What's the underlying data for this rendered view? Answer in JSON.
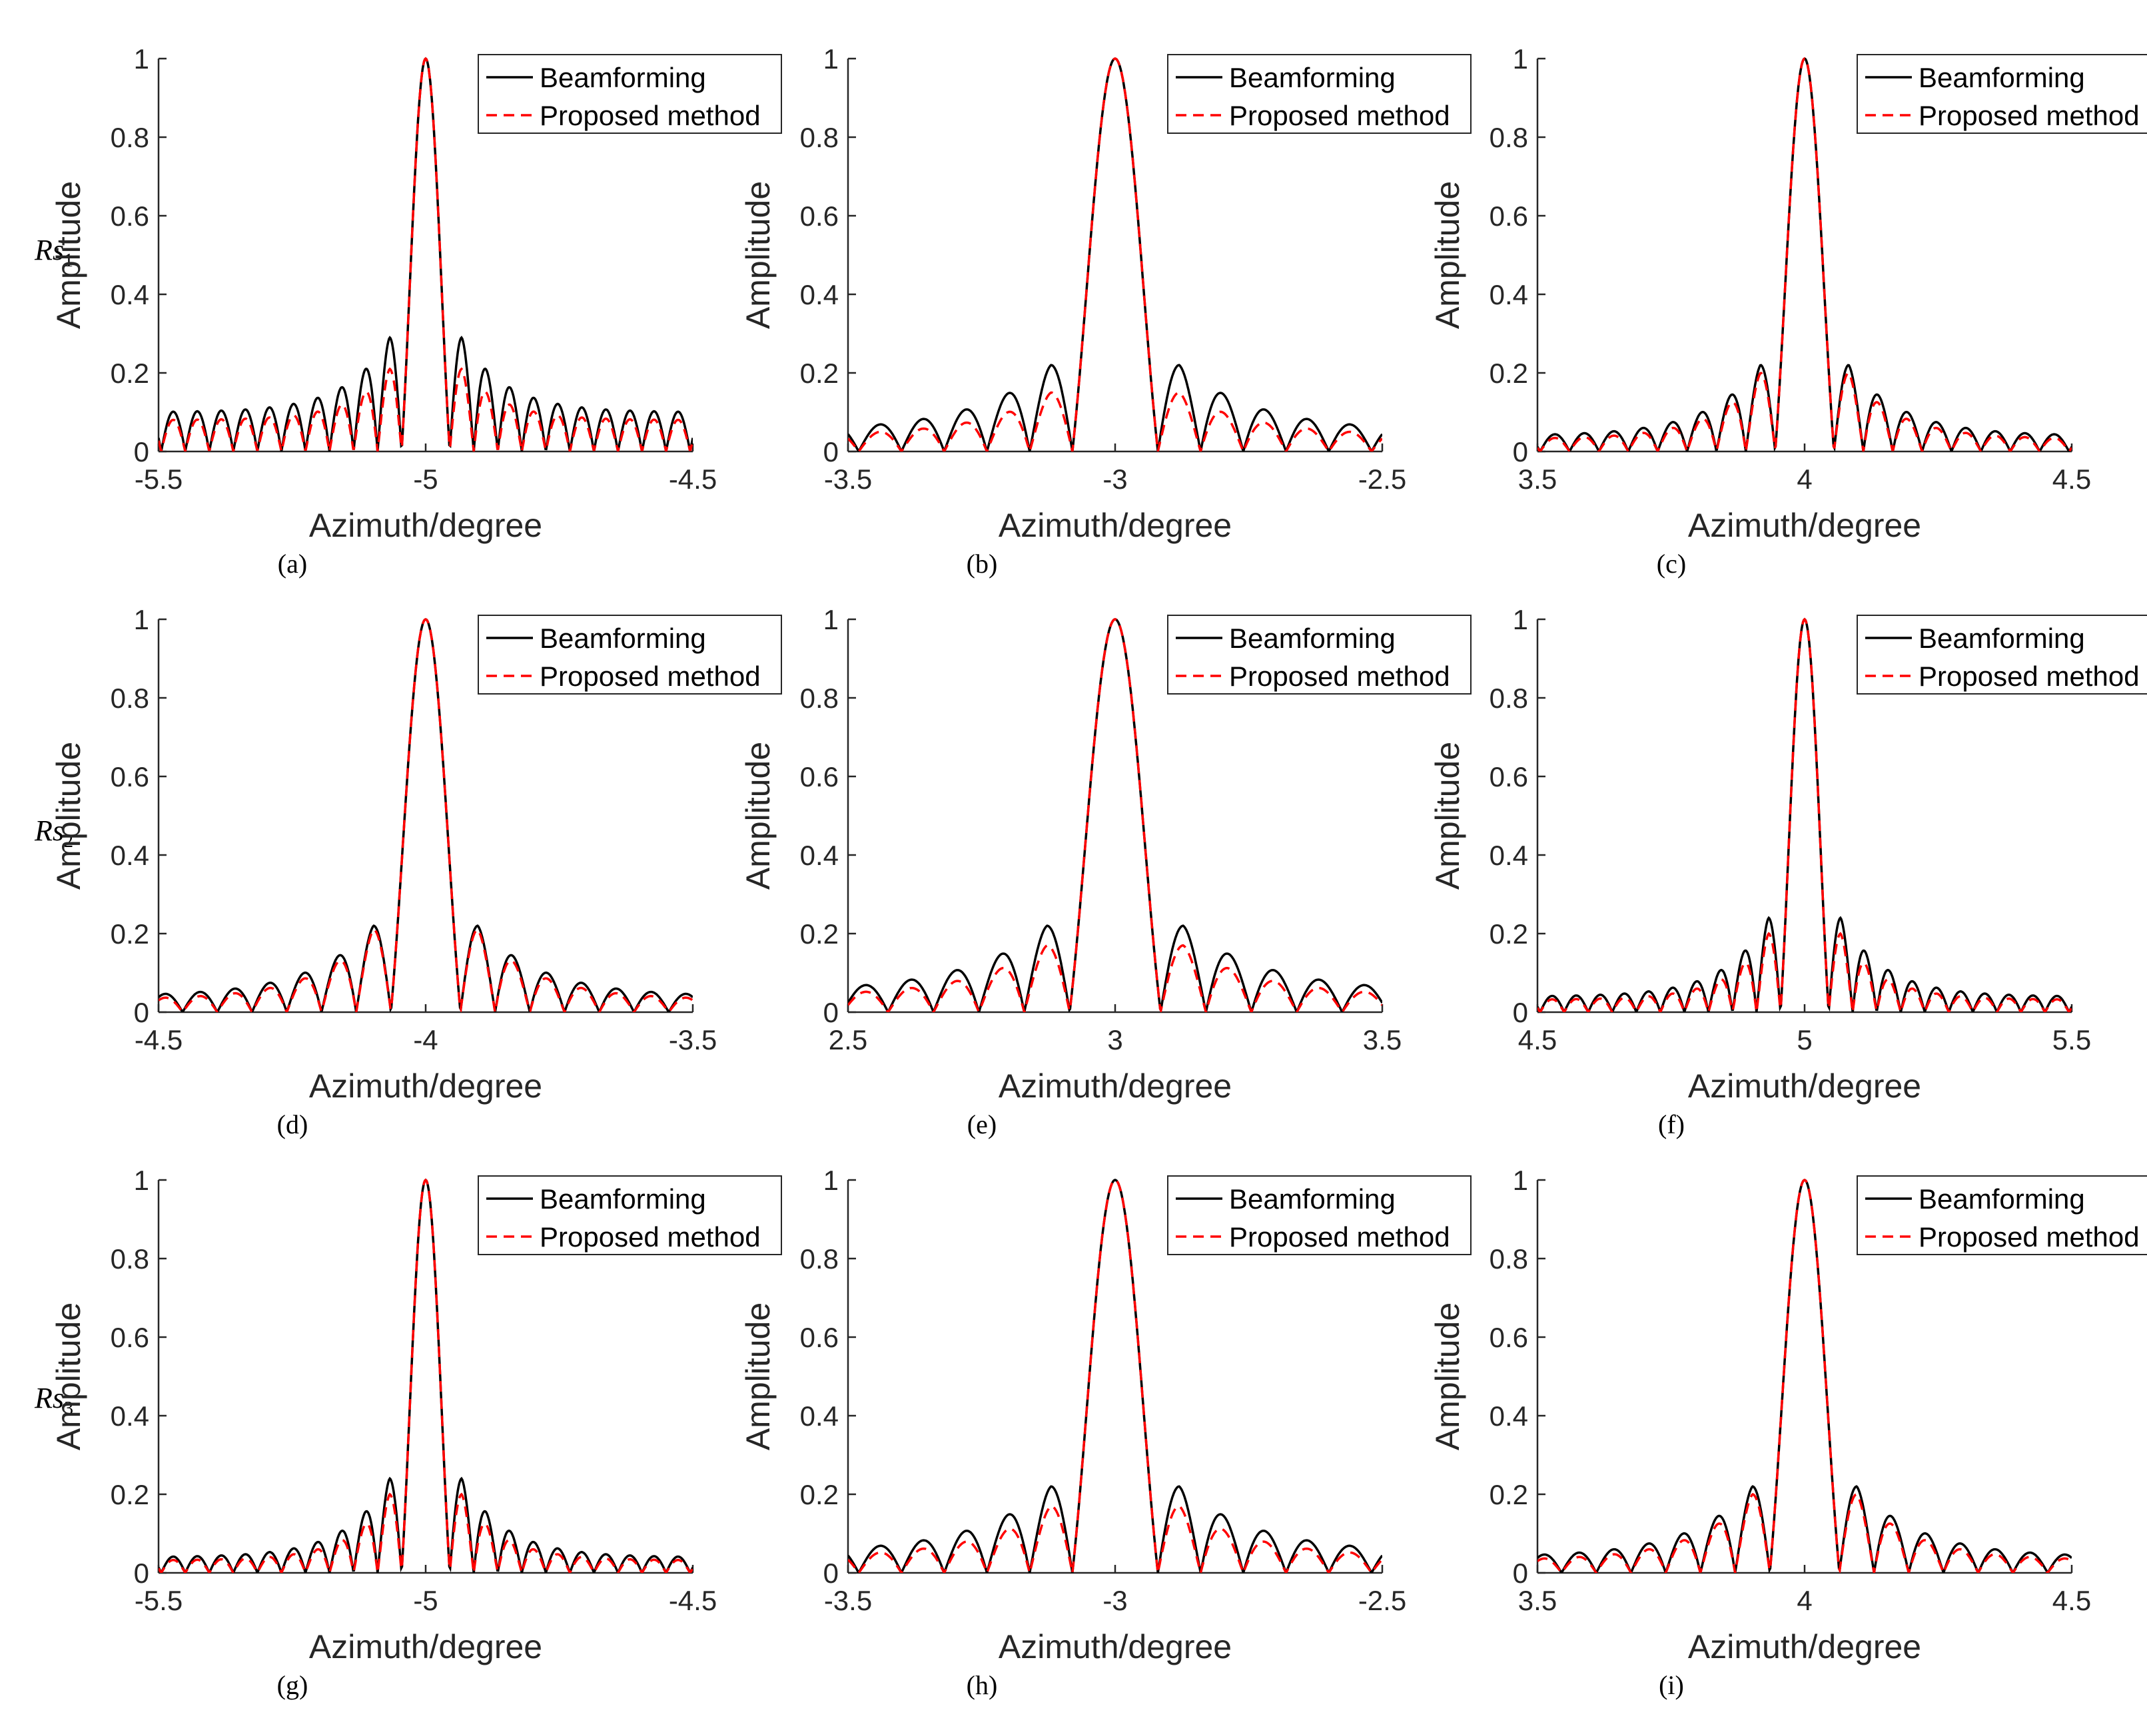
{
  "figure": {
    "row_labels": [
      {
        "base": "Rs",
        "sub": "1"
      },
      {
        "base": "Rs",
        "sub": "2"
      },
      {
        "base": "Rs",
        "sub": "3"
      }
    ]
  },
  "chart_data": [
    {
      "type": "line",
      "caption": "(a)",
      "xlabel": "Azimuth/degree",
      "ylabel": "Amplitude",
      "xlim": [
        -5.5,
        -4.5
      ],
      "ylim": [
        0,
        1
      ],
      "xticks": [
        "-5.5",
        "-5",
        "-4.5"
      ],
      "yticks": [
        "0",
        "0.2",
        "0.4",
        "0.6",
        "0.8",
        "1"
      ],
      "center": -5.0,
      "mainlobe_halfwidth": 0.045,
      "first_sidelobe": 0.29,
      "sidelobe_floor": 0.1,
      "proposed_peak": 0.21,
      "legend_position": "top-right",
      "series": [
        {
          "name": "Beamforming",
          "color": "#000000",
          "style": "solid"
        },
        {
          "name": "Proposed method",
          "color": "#ff0000",
          "style": "dashed"
        }
      ]
    },
    {
      "type": "line",
      "caption": "(b)",
      "xlabel": "Azimuth/degree",
      "ylabel": "Amplitude",
      "xlim": [
        -3.5,
        -2.5
      ],
      "ylim": [
        0,
        1
      ],
      "xticks": [
        "-3.5",
        "-3",
        "-2.5"
      ],
      "yticks": [
        "0",
        "0.2",
        "0.4",
        "0.6",
        "0.8",
        "1"
      ],
      "center": -3.0,
      "mainlobe_halfwidth": 0.08,
      "first_sidelobe": 0.22,
      "sidelobe_floor": 0.05,
      "proposed_peak": 0.15,
      "legend_position": "top-right",
      "series": [
        {
          "name": "Beamforming",
          "color": "#000000",
          "style": "solid"
        },
        {
          "name": "Proposed method",
          "color": "#ff0000",
          "style": "dashed"
        }
      ]
    },
    {
      "type": "line",
      "caption": "(c)",
      "xlabel": "Azimuth/degree",
      "ylabel": "Amplitude",
      "xlim": [
        3.5,
        4.5
      ],
      "ylim": [
        0,
        1
      ],
      "xticks": [
        "3.5",
        "4",
        "4.5"
      ],
      "yticks": [
        "0",
        "0.2",
        "0.4",
        "0.6",
        "0.8",
        "1"
      ],
      "center": 4.0,
      "mainlobe_halfwidth": 0.055,
      "first_sidelobe": 0.22,
      "sidelobe_floor": 0.04,
      "proposed_peak": 0.2,
      "legend_position": "top-right",
      "series": [
        {
          "name": "Beamforming",
          "color": "#000000",
          "style": "solid"
        },
        {
          "name": "Proposed method",
          "color": "#ff0000",
          "style": "dashed"
        }
      ]
    },
    {
      "type": "line",
      "caption": "(d)",
      "xlabel": "Azimuth/degree",
      "ylabel": "Amplitude",
      "xlim": [
        -4.5,
        -3.5
      ],
      "ylim": [
        0,
        1
      ],
      "xticks": [
        "-4.5",
        "-4",
        "-3.5"
      ],
      "yticks": [
        "0",
        "0.2",
        "0.4",
        "0.6",
        "0.8",
        "1"
      ],
      "center": -4.0,
      "mainlobe_halfwidth": 0.065,
      "first_sidelobe": 0.22,
      "sidelobe_floor": 0.04,
      "proposed_peak": 0.21,
      "legend_position": "top-right",
      "series": [
        {
          "name": "Beamforming",
          "color": "#000000",
          "style": "solid"
        },
        {
          "name": "Proposed method",
          "color": "#ff0000",
          "style": "dashed"
        }
      ]
    },
    {
      "type": "line",
      "caption": "(e)",
      "xlabel": "Azimuth/degree",
      "ylabel": "Amplitude",
      "xlim": [
        2.5,
        3.5
      ],
      "ylim": [
        0,
        1
      ],
      "xticks": [
        "2.5",
        "3",
        "3.5"
      ],
      "yticks": [
        "0",
        "0.2",
        "0.4",
        "0.6",
        "0.8",
        "1"
      ],
      "center": 3.0,
      "mainlobe_halfwidth": 0.085,
      "first_sidelobe": 0.22,
      "sidelobe_floor": 0.05,
      "proposed_peak": 0.17,
      "legend_position": "top-right",
      "series": [
        {
          "name": "Beamforming",
          "color": "#000000",
          "style": "solid"
        },
        {
          "name": "Proposed method",
          "color": "#ff0000",
          "style": "dashed"
        }
      ]
    },
    {
      "type": "line",
      "caption": "(f)",
      "xlabel": "Azimuth/degree",
      "ylabel": "Amplitude",
      "xlim": [
        4.5,
        5.5
      ],
      "ylim": [
        0,
        1
      ],
      "xticks": [
        "4.5",
        "5",
        "5.5"
      ],
      "yticks": [
        "0",
        "0.2",
        "0.4",
        "0.6",
        "0.8",
        "1"
      ],
      "center": 5.0,
      "mainlobe_halfwidth": 0.045,
      "first_sidelobe": 0.24,
      "sidelobe_floor": 0.04,
      "proposed_peak": 0.2,
      "legend_position": "top-right",
      "series": [
        {
          "name": "Beamforming",
          "color": "#000000",
          "style": "solid"
        },
        {
          "name": "Proposed method",
          "color": "#ff0000",
          "style": "dashed"
        }
      ]
    },
    {
      "type": "line",
      "caption": "(g)",
      "xlabel": "Azimuth/degree",
      "ylabel": "Amplitude",
      "xlim": [
        -5.5,
        -4.5
      ],
      "ylim": [
        0,
        1
      ],
      "xticks": [
        "-5.5",
        "-5",
        "-4.5"
      ],
      "yticks": [
        "0",
        "0.2",
        "0.4",
        "0.6",
        "0.8",
        "1"
      ],
      "center": -5.0,
      "mainlobe_halfwidth": 0.045,
      "first_sidelobe": 0.24,
      "sidelobe_floor": 0.04,
      "proposed_peak": 0.2,
      "legend_position": "top-right",
      "series": [
        {
          "name": "Beamforming",
          "color": "#000000",
          "style": "solid"
        },
        {
          "name": "Proposed method",
          "color": "#ff0000",
          "style": "dashed"
        }
      ]
    },
    {
      "type": "line",
      "caption": "(h)",
      "xlabel": "Azimuth/degree",
      "ylabel": "Amplitude",
      "xlim": [
        -3.5,
        -2.5
      ],
      "ylim": [
        0,
        1
      ],
      "xticks": [
        "-3.5",
        "-3",
        "-2.5"
      ],
      "yticks": [
        "0",
        "0.2",
        "0.4",
        "0.6",
        "0.8",
        "1"
      ],
      "center": -3.0,
      "mainlobe_halfwidth": 0.08,
      "first_sidelobe": 0.22,
      "sidelobe_floor": 0.05,
      "proposed_peak": 0.17,
      "legend_position": "top-right",
      "series": [
        {
          "name": "Beamforming",
          "color": "#000000",
          "style": "solid"
        },
        {
          "name": "Proposed method",
          "color": "#ff0000",
          "style": "dashed"
        }
      ]
    },
    {
      "type": "line",
      "caption": "(i)",
      "xlabel": "Azimuth/degree",
      "ylabel": "Amplitude",
      "xlim": [
        3.5,
        4.5
      ],
      "ylim": [
        0,
        1
      ],
      "xticks": [
        "3.5",
        "4",
        "4.5"
      ],
      "yticks": [
        "0",
        "0.2",
        "0.4",
        "0.6",
        "0.8",
        "1"
      ],
      "center": 4.0,
      "mainlobe_halfwidth": 0.065,
      "first_sidelobe": 0.22,
      "sidelobe_floor": 0.04,
      "proposed_peak": 0.2,
      "legend_position": "top-right",
      "series": [
        {
          "name": "Beamforming",
          "color": "#000000",
          "style": "solid"
        },
        {
          "name": "Proposed method",
          "color": "#ff0000",
          "style": "dashed"
        }
      ]
    }
  ]
}
